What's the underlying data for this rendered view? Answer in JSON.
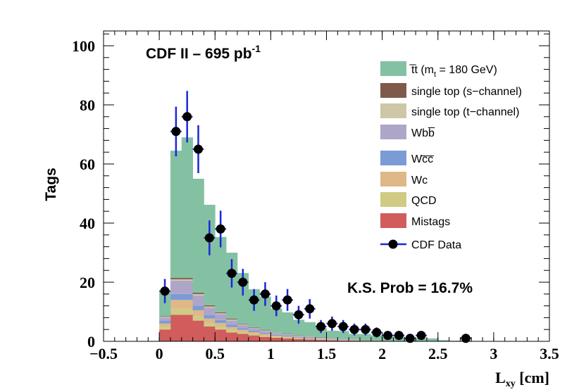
{
  "chart_data": {
    "type": "bar",
    "subtype": "stacked-histogram",
    "title_main": "CDF II – 695 pb",
    "title_sup": "-1",
    "ylabel": "Tags",
    "xlabel_main": "L",
    "xlabel_sub": "xy",
    "xlabel_unit": " [cm]",
    "xlim": [
      -0.5,
      3.5
    ],
    "ylim": [
      0,
      105
    ],
    "x_ticks": [
      -0.5,
      0,
      0.5,
      1,
      1.5,
      2,
      2.5,
      3,
      3.5
    ],
    "x_tick_labels": [
      "−0.5",
      "0",
      "0.5",
      "1",
      "1.5",
      "2",
      "2.5",
      "3",
      "3.5"
    ],
    "y_ticks": [
      0,
      20,
      40,
      60,
      80,
      100
    ],
    "y_tick_labels": [
      "0",
      "20",
      "40",
      "60",
      "80",
      "100"
    ],
    "bin_width": 0.1,
    "bins_low": [
      0.0,
      0.1,
      0.2,
      0.3,
      0.4,
      0.5,
      0.6,
      0.7,
      0.8,
      0.9,
      1.0,
      1.1,
      1.2,
      1.3,
      1.4,
      1.5,
      1.6,
      1.7,
      1.8,
      1.9,
      2.0,
      2.1,
      2.2,
      2.3,
      2.4,
      2.5,
      2.6,
      2.7,
      2.8,
      2.9
    ],
    "series": [
      {
        "name": "Mistags",
        "color": "#d05c5c",
        "values": [
          4,
          9,
          9,
          7,
          5,
          4,
          3,
          2.5,
          2,
          1.5,
          1.2,
          1,
          0.8,
          0.6,
          0.5,
          0.4,
          0.3,
          0.3,
          0.2,
          0.2,
          0.2,
          0.1,
          0.1,
          0.1,
          0.1,
          0,
          0,
          0,
          0,
          0
        ]
      },
      {
        "name": "QCD",
        "color": "#cfcb84",
        "values": [
          1,
          2,
          2,
          1.5,
          1.2,
          1,
          0.8,
          0.6,
          0.5,
          0.4,
          0.3,
          0.3,
          0.2,
          0.2,
          0.1,
          0.1,
          0.1,
          0.1,
          0,
          0,
          0,
          0,
          0,
          0,
          0,
          0,
          0,
          0,
          0,
          0
        ]
      },
      {
        "name": "Wc",
        "color": "#dfb887",
        "values": [
          1,
          3,
          3,
          2,
          1.5,
          1.2,
          1,
          0.8,
          0.6,
          0.5,
          0.4,
          0.3,
          0.3,
          0.2,
          0.2,
          0.1,
          0.1,
          0.1,
          0,
          0,
          0,
          0,
          0,
          0,
          0,
          0,
          0,
          0,
          0,
          0
        ]
      },
      {
        "name": "Wc̅c̅",
        "color": "#7b9bd6",
        "values": [
          1,
          2,
          2,
          1.5,
          1.2,
          1,
          0.8,
          0.6,
          0.5,
          0.4,
          0.3,
          0.3,
          0.2,
          0.2,
          0.1,
          0.1,
          0.1,
          0.1,
          0,
          0,
          0,
          0,
          0,
          0,
          0,
          0,
          0,
          0,
          0,
          0
        ]
      },
      {
        "name": "Wbb̅",
        "color": "#aea6c8",
        "values": [
          1,
          4.5,
          4.5,
          3.5,
          2.5,
          2,
          1.5,
          1,
          0.8,
          0.7,
          0.5,
          0.4,
          0.3,
          0.3,
          0.2,
          0.2,
          0.1,
          0.1,
          0,
          0,
          0,
          0,
          0,
          0,
          0,
          0,
          0,
          0,
          0,
          0
        ]
      },
      {
        "name": "single top (t−channel)",
        "color": "#cdc7a7",
        "values": [
          0.3,
          0.5,
          0.5,
          0.5,
          0.4,
          0.3,
          0.3,
          0.2,
          0.2,
          0.2,
          0.1,
          0.1,
          0.1,
          0.1,
          0.1,
          0.1,
          0,
          0,
          0,
          0,
          0,
          0,
          0,
          0,
          0,
          0,
          0,
          0,
          0,
          0
        ]
      },
      {
        "name": "single top (s−channel)",
        "color": "#7e5a4b",
        "values": [
          0.2,
          0.5,
          0.5,
          0.5,
          0.4,
          0.3,
          0.3,
          0.2,
          0.2,
          0.2,
          0.1,
          0.1,
          0.1,
          0.1,
          0.1,
          0.1,
          0,
          0,
          0,
          0,
          0,
          0,
          0,
          0,
          0,
          0,
          0,
          0,
          0,
          0
        ]
      },
      {
        "name": "t̅t (m_t = 180 GeV)",
        "color": "#84c1a3",
        "values": [
          8.5,
          43,
          47.5,
          38.5,
          34,
          25.5,
          22.3,
          17.2,
          12.8,
          11.2,
          8.2,
          7.3,
          5.3,
          4.8,
          3.3,
          2.5,
          2.8,
          1.8,
          2.3,
          1.8,
          1.3,
          1.4,
          0.7,
          0.9,
          0.9,
          0.4,
          0.2,
          0.2,
          0.1,
          0.1
        ]
      }
    ],
    "data_points": {
      "name": "CDF Data",
      "marker_color": "#000000",
      "error_color": "#1a28d8",
      "x": [
        0.05,
        0.15,
        0.25,
        0.35,
        0.45,
        0.55,
        0.65,
        0.75,
        0.85,
        0.95,
        1.05,
        1.15,
        1.25,
        1.35,
        1.45,
        1.55,
        1.65,
        1.75,
        1.85,
        1.95,
        2.05,
        2.15,
        2.25,
        2.35,
        2.75
      ],
      "y": [
        17,
        71,
        76,
        65,
        35,
        38,
        23,
        20,
        14,
        16,
        12,
        14,
        9,
        11,
        5,
        6,
        5,
        4,
        4,
        3,
        2,
        2,
        1,
        2,
        1
      ],
      "err": [
        4.1,
        8.4,
        8.7,
        8.1,
        5.9,
        6.2,
        4.8,
        4.5,
        3.7,
        4.0,
        3.5,
        3.7,
        3.0,
        3.3,
        2.2,
        2.4,
        2.2,
        2.0,
        2.0,
        1.7,
        1.4,
        1.4,
        1.0,
        1.4,
        1.0
      ]
    },
    "annotation": "K.S. Prob = 16.7%",
    "legend_position": "top-right",
    "legend": [
      {
        "kind": "fill",
        "label": "t̅t (m",
        "sub": "t",
        "label_tail": " = 180 GeV)",
        "color": "#84c1a3"
      },
      {
        "kind": "fill",
        "label": "single top (s−channel)",
        "color": "#7e5a4b"
      },
      {
        "kind": "fill",
        "label": "single top (t−channel)",
        "color": "#cdc7a7"
      },
      {
        "kind": "fill",
        "label": "Wbb̅",
        "color": "#aea6c8"
      },
      {
        "kind": "fill",
        "label": "Wc̅c̅",
        "color": "#7b9bd6"
      },
      {
        "kind": "fill",
        "label": "Wc",
        "color": "#dfb887"
      },
      {
        "kind": "fill",
        "label": "QCD",
        "color": "#cfcb84"
      },
      {
        "kind": "fill",
        "label": "Mistags",
        "color": "#d05c5c"
      },
      {
        "kind": "marker",
        "label": "CDF Data",
        "color": "#1a28d8"
      }
    ]
  }
}
